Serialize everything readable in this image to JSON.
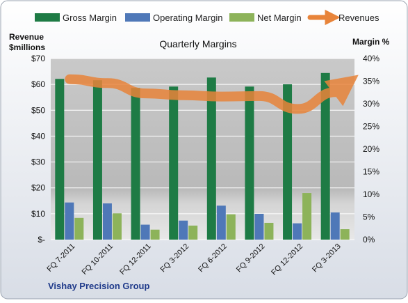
{
  "chart_data": {
    "type": "bar",
    "title": "Quarterly Margins",
    "left_axis_label_line1": "Revenue",
    "left_axis_label_line2": "$millions",
    "right_axis_label": "Margin %",
    "footer": "Vishay Precision Group",
    "categories": [
      "FQ 7-2011",
      "FQ 10-2011",
      "FQ 12-2011",
      "FQ 3-2012",
      "FQ 6-2012",
      "FQ 9-2012",
      "FQ 12-2012",
      "FQ 3-2013"
    ],
    "left_axis": {
      "min": 0,
      "max": 70,
      "ticks": [
        "$-",
        "$10",
        "$20",
        "$30",
        "$40",
        "$50",
        "$60",
        "$70"
      ]
    },
    "right_axis": {
      "min": 0,
      "max": 40,
      "ticks": [
        "0%",
        "5%",
        "10%",
        "15%",
        "20%",
        "25%",
        "30%",
        "35%",
        "40%"
      ]
    },
    "series": [
      {
        "name": "Gross Margin",
        "axis": "right",
        "color": "#1e7b45",
        "values": [
          35.5,
          35.2,
          33.5,
          33.8,
          35.8,
          33.8,
          34.3,
          36.8
        ]
      },
      {
        "name": "Operating Margin",
        "axis": "right",
        "color": "#4f78b8",
        "values": [
          8.2,
          8.0,
          3.3,
          4.2,
          7.5,
          5.7,
          3.6,
          6.0
        ]
      },
      {
        "name": "Net Margin",
        "axis": "right",
        "color": "#8db35a",
        "values": [
          4.8,
          5.8,
          2.2,
          3.1,
          5.6,
          3.7,
          10.3,
          2.3
        ]
      },
      {
        "name": "Revenues",
        "axis": "left",
        "color": "#e8843a",
        "values": [
          62,
          60.5,
          56.5,
          55.8,
          55.3,
          55.5,
          50.5,
          57
        ]
      }
    ],
    "legend_position": "top"
  }
}
